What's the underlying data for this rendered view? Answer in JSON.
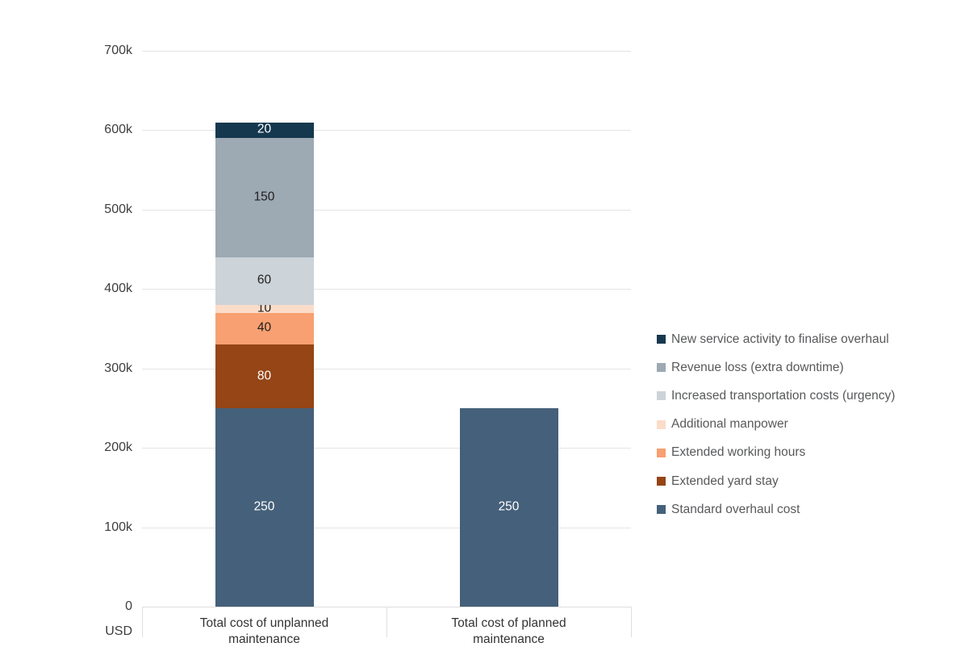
{
  "chart_data": {
    "type": "bar",
    "stacked": true,
    "title": "",
    "xlabel": "",
    "ylabel": "USD",
    "y_axis_unit_label": "USD",
    "value_unit": "thousand USD",
    "grid": true,
    "legend_position": "right",
    "legend_order": "top-of-stack-first",
    "ylim": [
      0,
      700
    ],
    "y_ticks": [
      0,
      100,
      200,
      300,
      400,
      500,
      600,
      700
    ],
    "y_tick_labels": [
      "0",
      "100k",
      "200k",
      "300k",
      "400k",
      "500k",
      "600k",
      "700k"
    ],
    "categories": [
      "Total cost of unplanned maintenance",
      "Total cost of planned maintenance"
    ],
    "category_display": [
      [
        "Total cost of unplanned",
        "maintenance"
      ],
      [
        "Total cost of planned",
        "maintenance"
      ]
    ],
    "series": [
      {
        "name": "Standard overhaul cost",
        "color": "#45607a",
        "label_color": "#ffffff",
        "values": [
          250,
          250
        ]
      },
      {
        "name": "Extended yard stay",
        "color": "#954516",
        "label_color": "#ffffff",
        "values": [
          80,
          0
        ]
      },
      {
        "name": "Extended working hours",
        "color": "#f8a071",
        "label_color": "#1f1f1f",
        "values": [
          40,
          0
        ]
      },
      {
        "name": "Additional manpower",
        "color": "#fbdcc9",
        "label_color": "#1f1f1f",
        "values": [
          10,
          0
        ]
      },
      {
        "name": "Increased transportation costs (urgency)",
        "color": "#ccd3d9",
        "label_color": "#1f1f1f",
        "values": [
          60,
          0
        ]
      },
      {
        "name": "Revenue loss (extra downtime)",
        "color": "#9da9b3",
        "label_color": "#1f1f1f",
        "values": [
          150,
          0
        ]
      },
      {
        "name": "New service activity to finalise overhaul",
        "color": "#16384e",
        "label_color": "#ffffff",
        "values": [
          20,
          0
        ]
      }
    ],
    "colors": {
      "gridline": "#e4e4e4",
      "axis_line": "#dfdfdf",
      "tick_label_text": "#3d3d3d",
      "category_label_text": "#333333",
      "legend_text": "#58595b",
      "background": "#ffffff"
    }
  }
}
